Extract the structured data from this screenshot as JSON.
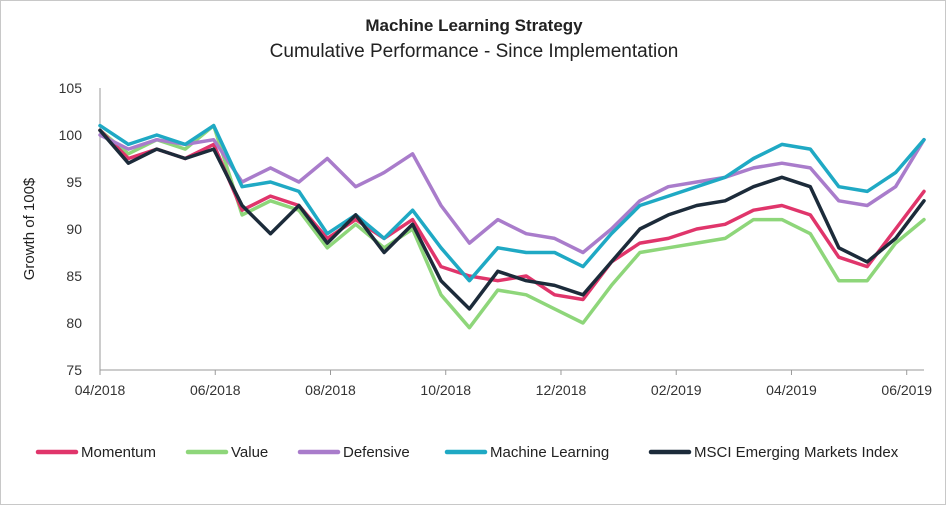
{
  "chart_data": {
    "type": "line",
    "title": "Machine Learning Strategy",
    "subtitle": "Cumulative Performance - Since Implementation",
    "xlabel": "",
    "ylabel": "Growth of 100$",
    "ylim": [
      75,
      105
    ],
    "yticks": [
      75,
      80,
      85,
      90,
      95,
      100,
      105
    ],
    "xticks": [
      "04/2018",
      "06/2018",
      "08/2018",
      "10/2018",
      "12/2018",
      "02/2019",
      "04/2019",
      "06/2019"
    ],
    "x": [
      "04/2018",
      "04/2018",
      "05/2018",
      "05/2018",
      "06/2018",
      "06/2018",
      "07/2018",
      "07/2018",
      "08/2018",
      "08/2018",
      "09/2018",
      "09/2018",
      "10/2018",
      "10/2018",
      "11/2018",
      "11/2018",
      "12/2018",
      "12/2018",
      "01/2019",
      "01/2019",
      "02/2019",
      "02/2019",
      "03/2019",
      "03/2019",
      "04/2019",
      "04/2019",
      "05/2019",
      "05/2019",
      "06/2019",
      "06/2019"
    ],
    "grid": false,
    "legend_position": "bottom",
    "series": [
      {
        "name": "Momentum",
        "color": "#e0356b",
        "values": [
          100.5,
          97.5,
          98.5,
          97.5,
          99.0,
          92.0,
          93.5,
          92.5,
          89.0,
          91.0,
          89.0,
          91.0,
          86.0,
          85.0,
          84.5,
          85.0,
          83.0,
          82.5,
          86.5,
          88.5,
          89.0,
          90.0,
          90.5,
          92.0,
          92.5,
          91.5,
          87.0,
          86.0,
          90.0,
          94.0
        ]
      },
      {
        "name": "Value",
        "color": "#8ed67a",
        "values": [
          100.5,
          98.0,
          99.5,
          98.5,
          101.0,
          91.5,
          93.0,
          92.0,
          88.0,
          90.5,
          88.0,
          90.0,
          83.0,
          79.5,
          83.5,
          83.0,
          81.5,
          80.0,
          84.0,
          87.5,
          88.0,
          88.5,
          89.0,
          91.0,
          91.0,
          89.5,
          84.5,
          84.5,
          88.5,
          91.0
        ]
      },
      {
        "name": "Defensive",
        "color": "#a97ccb",
        "values": [
          100.0,
          98.5,
          99.5,
          99.0,
          99.5,
          95.0,
          96.5,
          95.0,
          97.5,
          94.5,
          96.0,
          98.0,
          92.5,
          88.5,
          91.0,
          89.5,
          89.0,
          87.5,
          90.0,
          93.0,
          94.5,
          95.0,
          95.5,
          96.5,
          97.0,
          96.5,
          93.0,
          92.5,
          94.5,
          99.5
        ]
      },
      {
        "name": "Machine Learning",
        "color": "#1fa9c4",
        "values": [
          101.0,
          99.0,
          100.0,
          99.0,
          101.0,
          94.5,
          95.0,
          94.0,
          89.5,
          91.5,
          89.0,
          92.0,
          88.0,
          84.5,
          88.0,
          87.5,
          87.5,
          86.0,
          89.5,
          92.5,
          93.5,
          94.5,
          95.5,
          97.5,
          99.0,
          98.5,
          94.5,
          94.0,
          96.0,
          99.5
        ]
      },
      {
        "name": "MSCI Emerging Markets Index",
        "color": "#1c2b3a",
        "values": [
          100.5,
          97.0,
          98.5,
          97.5,
          98.5,
          92.5,
          89.5,
          92.5,
          88.5,
          91.5,
          87.5,
          90.5,
          84.5,
          81.5,
          85.5,
          84.5,
          84.0,
          83.0,
          86.5,
          90.0,
          91.5,
          92.5,
          93.0,
          94.5,
          95.5,
          94.5,
          88.0,
          86.5,
          89.0,
          93.0
        ]
      }
    ]
  }
}
